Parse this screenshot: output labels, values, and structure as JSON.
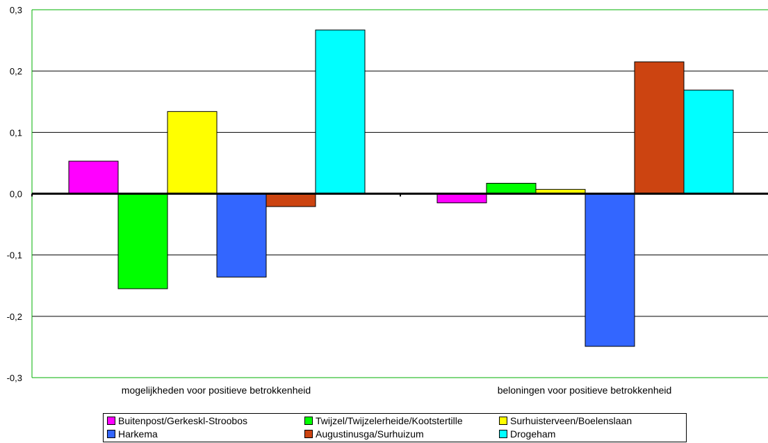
{
  "chart_data": {
    "type": "bar",
    "categories": [
      "mogelijkheden voor positieve betrokkenheid",
      "beloningen voor positieve betrokkenheid"
    ],
    "series": [
      {
        "name": "Buitenpost/Gerkeskl-Stroobos",
        "color": "#ff00ff",
        "values": [
          0.053,
          -0.015
        ]
      },
      {
        "name": "Twijzel/Twijzelerheide/Kootstertille",
        "color": "#00ff00",
        "values": [
          -0.155,
          0.017
        ]
      },
      {
        "name": "Surhuisterveen/Boelenslaan",
        "color": "#ffff00",
        "values": [
          0.134,
          0.007
        ]
      },
      {
        "name": "Harkema",
        "color": "#3366ff",
        "values": [
          -0.136,
          -0.249
        ]
      },
      {
        "name": "Augustinusga/Surhuizum",
        "color": "#cc4411",
        "values": [
          -0.021,
          0.215
        ]
      },
      {
        "name": "Drogeham",
        "color": "#00ffff",
        "values": [
          0.267,
          0.169
        ]
      }
    ],
    "ylim": [
      -0.3,
      0.3
    ],
    "yticks": [
      "0,3",
      "0,2",
      "0,1",
      "0,0",
      "-0,1",
      "-0,2",
      "-0,3"
    ],
    "ytick_values": [
      0.3,
      0.2,
      0.1,
      0.0,
      -0.1,
      -0.2,
      -0.3
    ],
    "grid": true,
    "legend_position": "bottom"
  }
}
